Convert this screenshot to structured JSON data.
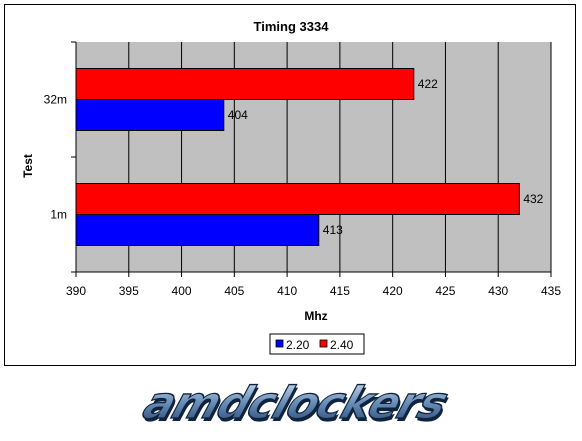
{
  "chart_data": {
    "type": "bar",
    "orientation": "horizontal",
    "title": "Timing 3334",
    "xlabel": "Mhz",
    "ylabel": "Test",
    "xlim": [
      390,
      435
    ],
    "xticks": [
      390,
      395,
      400,
      405,
      410,
      415,
      420,
      425,
      430,
      435
    ],
    "categories": [
      "1m",
      "32m"
    ],
    "series": [
      {
        "name": "2.20",
        "color": "#0000FF",
        "values": [
          413,
          404
        ]
      },
      {
        "name": "2.40",
        "color": "#FF0000",
        "values": [
          432,
          422
        ]
      }
    ],
    "data_labels": true,
    "grid": "vertical",
    "legend_position": "bottom",
    "plot_background": "#C0C0C0"
  },
  "branding": {
    "logo_text": "amdclockers"
  }
}
